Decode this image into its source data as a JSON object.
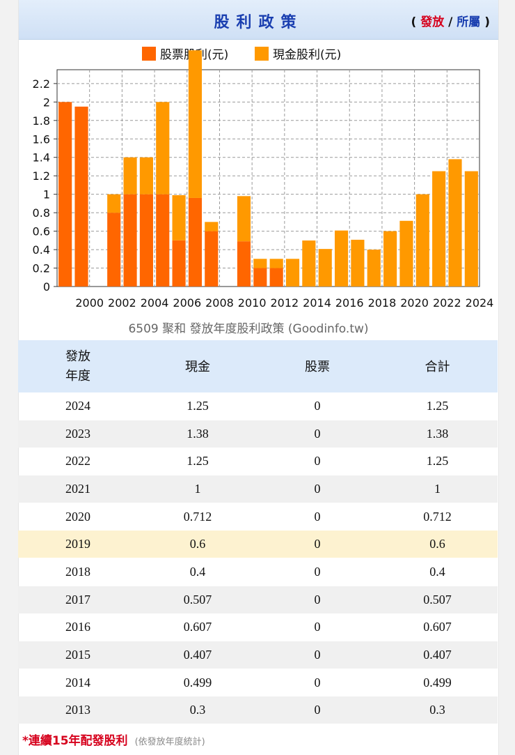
{
  "header": {
    "title": "股利政策",
    "open_paren": "(",
    "toggle_issue": "發放",
    "slash": "/",
    "toggle_belong": "所屬",
    "close_paren": ")"
  },
  "chart_data": {
    "type": "bar",
    "stacked": true,
    "title": "6509 聚和 發放年度股利政策 (Goodinfo.tw)",
    "legend": [
      "股票股利(元)",
      "現金股利(元)"
    ],
    "colors": {
      "stock": "#ff6600",
      "cash": "#ff9900"
    },
    "ylim": [
      0,
      2.35
    ],
    "yticks": [
      0,
      0.2,
      0.4,
      0.6,
      0.8,
      1,
      1.2,
      1.4,
      1.6,
      1.8,
      2,
      2.2
    ],
    "xtick_labels": [
      "2000",
      "2002",
      "2004",
      "2006",
      "2008",
      "2010",
      "2012",
      "2014",
      "2016",
      "2018",
      "2020",
      "2022",
      "2024"
    ],
    "years": [
      1999,
      2000,
      2001,
      2002,
      2003,
      2004,
      2005,
      2006,
      2007,
      2008,
      2009,
      2010,
      2011,
      2012,
      2013,
      2014,
      2015,
      2016,
      2017,
      2018,
      2019,
      2020,
      2021,
      2022,
      2023,
      2024
    ],
    "stock": [
      2.0,
      1.95,
      0,
      0.8,
      1.0,
      1.0,
      1.0,
      0.5,
      0.96,
      0.6,
      0,
      0.49,
      0.2,
      0.2,
      0,
      0,
      0,
      0,
      0,
      0,
      0,
      0,
      0,
      0,
      0,
      0
    ],
    "cash": [
      0,
      0,
      0,
      0.2,
      0.4,
      0.4,
      1.0,
      0.49,
      1.6,
      0.1,
      0,
      0.49,
      0.1,
      0.1,
      0.3,
      0.499,
      0.407,
      0.607,
      0.507,
      0.4,
      0.6,
      0.712,
      1.0,
      1.25,
      1.38,
      1.25
    ]
  },
  "table": {
    "headers": {
      "year_line1": "發放",
      "year_line2": "年度",
      "cash": "現金",
      "stock": "股票",
      "total": "合計"
    },
    "rows": [
      [
        "2024",
        "1.25",
        "0",
        "1.25"
      ],
      [
        "2023",
        "1.38",
        "0",
        "1.38"
      ],
      [
        "2022",
        "1.25",
        "0",
        "1.25"
      ],
      [
        "2021",
        "1",
        "0",
        "1"
      ],
      [
        "2020",
        "0.712",
        "0",
        "0.712"
      ],
      [
        "2019",
        "0.6",
        "0",
        "0.6"
      ],
      [
        "2018",
        "0.4",
        "0",
        "0.4"
      ],
      [
        "2017",
        "0.507",
        "0",
        "0.507"
      ],
      [
        "2016",
        "0.607",
        "0",
        "0.607"
      ],
      [
        "2015",
        "0.407",
        "0",
        "0.407"
      ],
      [
        "2014",
        "0.499",
        "0",
        "0.499"
      ],
      [
        "2013",
        "0.3",
        "0",
        "0.3"
      ]
    ]
  },
  "footer": {
    "streak": "*連續15年配發股利",
    "note": "(依發放年度統計)"
  }
}
